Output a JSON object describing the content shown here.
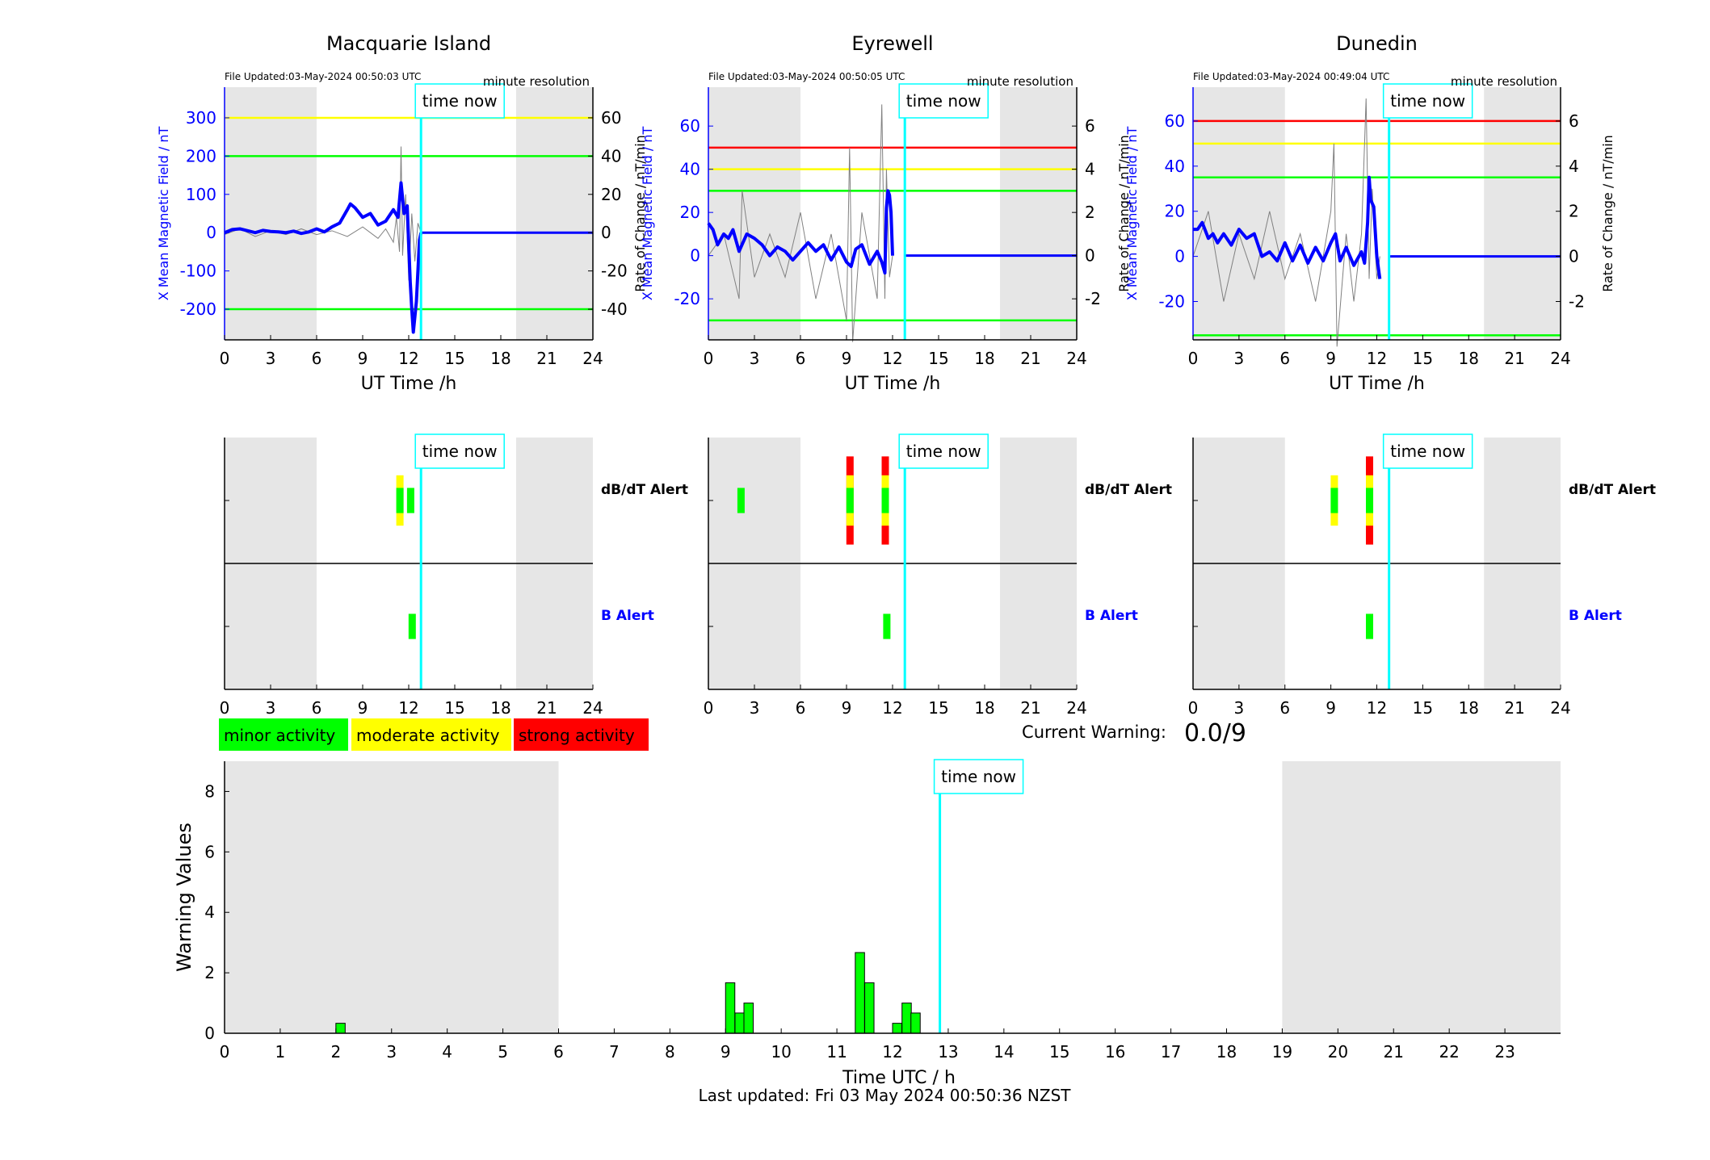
{
  "title": "",
  "time_now_label": "time now",
  "minute_resolution_label": "minute resolution",
  "x_axis_label": "UT Time /h",
  "x_ticks": [
    "0",
    "3",
    "6",
    "9",
    "12",
    "15",
    "18",
    "21",
    "24"
  ],
  "current_warning": {
    "label": "Current Warning:",
    "value": "0.0/9"
  },
  "alert_labels": {
    "dbdt": "dB/dT Alert",
    "b": "B Alert"
  },
  "legend": [
    {
      "label": "minor activity",
      "color": "#00ff00"
    },
    {
      "label": "moderate activity",
      "color": "#ffff00"
    },
    {
      "label": "strong activity",
      "color": "#ff0000"
    }
  ],
  "colors": {
    "shade": "#e6e6e6",
    "time_now": "#00ffff",
    "series": "#0000ff",
    "minor": "#00ff00",
    "moderate": "#ffff00",
    "strong": "#ff0000",
    "rate": "#808080"
  },
  "footer": "Last updated: Fri 03 May 2024 00:50:36 NZST",
  "chart_data": [
    {
      "type": "line",
      "title": "Macquarie Island",
      "file_updated": "File Updated:03-May-2024 00:50:03 UTC",
      "ylabel": "X Mean Magnetic Field / nT",
      "ylabel_right": "Rate of Change / nT/min",
      "xlabel": "UT Time /h",
      "xlim": [
        0,
        24
      ],
      "ylim": [
        -280,
        380
      ],
      "yticks": [
        -200,
        -100,
        0,
        100,
        200,
        300
      ],
      "yticks_right": [
        -40,
        -20,
        0,
        20,
        40,
        60
      ],
      "right_scale_factor": 5,
      "time_now": 12.8,
      "shaded": [
        [
          0,
          6
        ],
        [
          19,
          24
        ]
      ],
      "thresholds": [
        {
          "value": 300,
          "color": "#ffff00"
        },
        {
          "value": 200,
          "color": "#00ff00"
        },
        {
          "value": -200,
          "color": "#00ff00"
        }
      ],
      "x_mean": {
        "x": [
          0,
          0.5,
          1,
          1.5,
          2,
          2.5,
          3,
          3.5,
          4,
          4.5,
          5,
          5.5,
          6,
          6.5,
          7,
          7.5,
          8,
          8.2,
          8.5,
          9,
          9.5,
          10,
          10.5,
          11,
          11.3,
          11.5,
          11.7,
          11.9,
          12.1,
          12.2,
          12.3,
          12.5,
          12.6,
          12.7,
          12.8
        ],
        "y": [
          0,
          8,
          10,
          5,
          0,
          6,
          3,
          2,
          0,
          4,
          -2,
          2,
          10,
          2,
          15,
          25,
          60,
          75,
          65,
          40,
          50,
          20,
          30,
          60,
          40,
          130,
          50,
          70,
          -130,
          -200,
          -260,
          -180,
          -100,
          -20,
          0
        ]
      },
      "rate": {
        "x": [
          0,
          1,
          2,
          3,
          4,
          5,
          6,
          7,
          8,
          9,
          10,
          10.5,
          11,
          11.2,
          11.4,
          11.5,
          11.6,
          11.8,
          12,
          12.2,
          12.4,
          12.6,
          12.8
        ],
        "y": [
          -1,
          2,
          -2,
          1,
          -1,
          2,
          -1,
          1,
          -2,
          3,
          -3,
          2,
          -5,
          8,
          -10,
          45,
          -12,
          20,
          -25,
          10,
          -15,
          5,
          0
        ]
      },
      "alerts": {
        "dbdt": [
          {
            "x": 11.4,
            "lo": 0.6,
            "hi": 1.4,
            "color": "#ffff00"
          },
          {
            "x": 11.4,
            "lo": 0.8,
            "hi": 1.2,
            "color": "#00ff00"
          },
          {
            "x": 12.1,
            "lo": 0.8,
            "hi": 1.2,
            "color": "#00ff00"
          }
        ],
        "b": [
          {
            "x": 12.2,
            "lo": 0.8,
            "hi": 1.2,
            "color": "#00ff00"
          }
        ]
      }
    },
    {
      "type": "line",
      "title": "Eyrewell",
      "file_updated": "File Updated:03-May-2024 00:50:05 UTC",
      "ylabel": "X Mean Magnetic Field / nT",
      "ylabel_right": "Rate of Change / nT/min",
      "xlabel": "UT Time /h",
      "xlim": [
        0,
        24
      ],
      "ylim": [
        -39,
        78
      ],
      "yticks": [
        -20,
        0,
        20,
        40,
        60
      ],
      "yticks_right": [
        -2,
        0,
        2,
        4,
        6
      ],
      "right_scale_factor": 10,
      "time_now": 12.8,
      "shaded": [
        [
          0,
          6
        ],
        [
          19,
          24
        ]
      ],
      "thresholds": [
        {
          "value": 50,
          "color": "#ff0000"
        },
        {
          "value": 40,
          "color": "#ffff00"
        },
        {
          "value": 30,
          "color": "#00ff00"
        },
        {
          "value": -30,
          "color": "#00ff00"
        }
      ],
      "x_mean": {
        "x": [
          0,
          0.3,
          0.6,
          1,
          1.3,
          1.6,
          2,
          2.5,
          3,
          3.5,
          4,
          4.5,
          5,
          5.5,
          6,
          6.5,
          7,
          7.5,
          8,
          8.5,
          9,
          9.3,
          9.6,
          10,
          10.5,
          11,
          11.3,
          11.5,
          11.6,
          11.7,
          11.8,
          11.9,
          12
        ],
        "y": [
          15,
          12,
          5,
          10,
          8,
          12,
          2,
          10,
          8,
          5,
          0,
          4,
          2,
          -2,
          2,
          6,
          2,
          5,
          -2,
          4,
          -3,
          -5,
          3,
          5,
          -4,
          2,
          -3,
          -8,
          22,
          30,
          28,
          20,
          0
        ]
      },
      "rate": {
        "x": [
          0,
          1,
          2,
          2.2,
          3,
          4,
          5,
          6,
          7,
          8,
          9,
          9.2,
          9.4,
          10,
          11,
          11.3,
          11.5,
          11.6,
          11.8,
          12
        ],
        "y": [
          0,
          1,
          -2,
          3,
          -1,
          1,
          -1,
          2,
          -2,
          1,
          -3,
          5,
          -4,
          2,
          -2,
          7,
          -2,
          4,
          -1,
          0
        ]
      },
      "alerts": {
        "dbdt": [
          {
            "x": 2.1,
            "lo": 0.8,
            "hi": 1.2,
            "color": "#00ff00"
          },
          {
            "x": 9.2,
            "lo": 0.3,
            "hi": 1.7,
            "color": "#ff0000"
          },
          {
            "x": 9.2,
            "lo": 0.6,
            "hi": 1.4,
            "color": "#ffff00"
          },
          {
            "x": 9.2,
            "lo": 0.8,
            "hi": 1.2,
            "color": "#00ff00"
          },
          {
            "x": 11.5,
            "lo": 0.3,
            "hi": 1.7,
            "color": "#ff0000"
          },
          {
            "x": 11.5,
            "lo": 0.6,
            "hi": 1.4,
            "color": "#ffff00"
          },
          {
            "x": 11.5,
            "lo": 0.8,
            "hi": 1.2,
            "color": "#00ff00"
          }
        ],
        "b": [
          {
            "x": 11.6,
            "lo": 0.8,
            "hi": 1.2,
            "color": "#00ff00"
          }
        ]
      }
    },
    {
      "type": "line",
      "title": "Dunedin",
      "file_updated": "File Updated:03-May-2024 00:49:04 UTC",
      "ylabel": "X Mean Magnetic Field / nT",
      "ylabel_right": "Rate of Change / nT/min",
      "xlabel": "UT Time /h",
      "xlim": [
        0,
        24
      ],
      "ylim": [
        -37,
        75
      ],
      "yticks": [
        -20,
        0,
        20,
        40,
        60
      ],
      "yticks_right": [
        -2,
        0,
        2,
        4,
        6
      ],
      "right_scale_factor": 10,
      "time_now": 12.8,
      "shaded": [
        [
          0,
          6
        ],
        [
          19,
          24
        ]
      ],
      "thresholds": [
        {
          "value": 60,
          "color": "#ff0000"
        },
        {
          "value": 50,
          "color": "#ffff00"
        },
        {
          "value": 35,
          "color": "#00ff00"
        },
        {
          "value": -35,
          "color": "#00ff00"
        }
      ],
      "x_mean": {
        "x": [
          0,
          0.3,
          0.6,
          1,
          1.3,
          1.6,
          2,
          2.5,
          3,
          3.5,
          4,
          4.5,
          5,
          5.5,
          6,
          6.5,
          7,
          7.5,
          8,
          8.5,
          9,
          9.3,
          9.6,
          10,
          10.5,
          11,
          11.2,
          11.4,
          11.5,
          11.6,
          11.8,
          12,
          12.2
        ],
        "y": [
          12,
          12,
          15,
          8,
          10,
          6,
          10,
          5,
          12,
          8,
          10,
          0,
          2,
          -2,
          6,
          -2,
          5,
          -3,
          4,
          -2,
          6,
          10,
          -2,
          4,
          -4,
          2,
          -3,
          15,
          35,
          25,
          22,
          0,
          -10
        ]
      },
      "rate": {
        "x": [
          0,
          1,
          2,
          3,
          4,
          5,
          6,
          7,
          8,
          9,
          9.2,
          9.4,
          10,
          10.5,
          11,
          11.3,
          11.5,
          11.7,
          12,
          12.2
        ],
        "y": [
          0,
          2,
          -2,
          1,
          -1,
          2,
          -1,
          1,
          -2,
          2,
          5,
          -4,
          1,
          -2,
          1,
          7,
          -1,
          3,
          -1,
          0
        ]
      },
      "alerts": {
        "dbdt": [
          {
            "x": 9.2,
            "lo": 0.6,
            "hi": 1.4,
            "color": "#ffff00"
          },
          {
            "x": 9.2,
            "lo": 0.8,
            "hi": 1.2,
            "color": "#00ff00"
          },
          {
            "x": 11.5,
            "lo": 0.3,
            "hi": 1.7,
            "color": "#ff0000"
          },
          {
            "x": 11.5,
            "lo": 0.6,
            "hi": 1.4,
            "color": "#ffff00"
          },
          {
            "x": 11.5,
            "lo": 0.8,
            "hi": 1.2,
            "color": "#00ff00"
          }
        ],
        "b": [
          {
            "x": 11.5,
            "lo": 0.8,
            "hi": 1.2,
            "color": "#00ff00"
          }
        ]
      }
    },
    {
      "type": "bar",
      "title": "",
      "ylabel": "Warning Values",
      "xlabel": "Time UTC / h",
      "xlim": [
        0,
        24
      ],
      "ylim": [
        0,
        9
      ],
      "yticks": [
        0,
        2,
        4,
        6,
        8
      ],
      "xticks": [
        0,
        1,
        2,
        3,
        4,
        5,
        6,
        7,
        8,
        9,
        10,
        11,
        12,
        13,
        14,
        15,
        16,
        17,
        18,
        19,
        20,
        21,
        22,
        23
      ],
      "time_now": 12.85,
      "shaded": [
        [
          0,
          6
        ],
        [
          19,
          24
        ]
      ],
      "bin_width": 0.1667,
      "bars": [
        {
          "x": 2.0,
          "value": 0.33
        },
        {
          "x": 9.0,
          "value": 1.67
        },
        {
          "x": 9.17,
          "value": 0.67
        },
        {
          "x": 9.33,
          "value": 1.0
        },
        {
          "x": 11.33,
          "value": 2.67
        },
        {
          "x": 11.5,
          "value": 1.67
        },
        {
          "x": 12.0,
          "value": 0.33
        },
        {
          "x": 12.17,
          "value": 1.0
        },
        {
          "x": 12.33,
          "value": 0.67
        }
      ]
    }
  ]
}
